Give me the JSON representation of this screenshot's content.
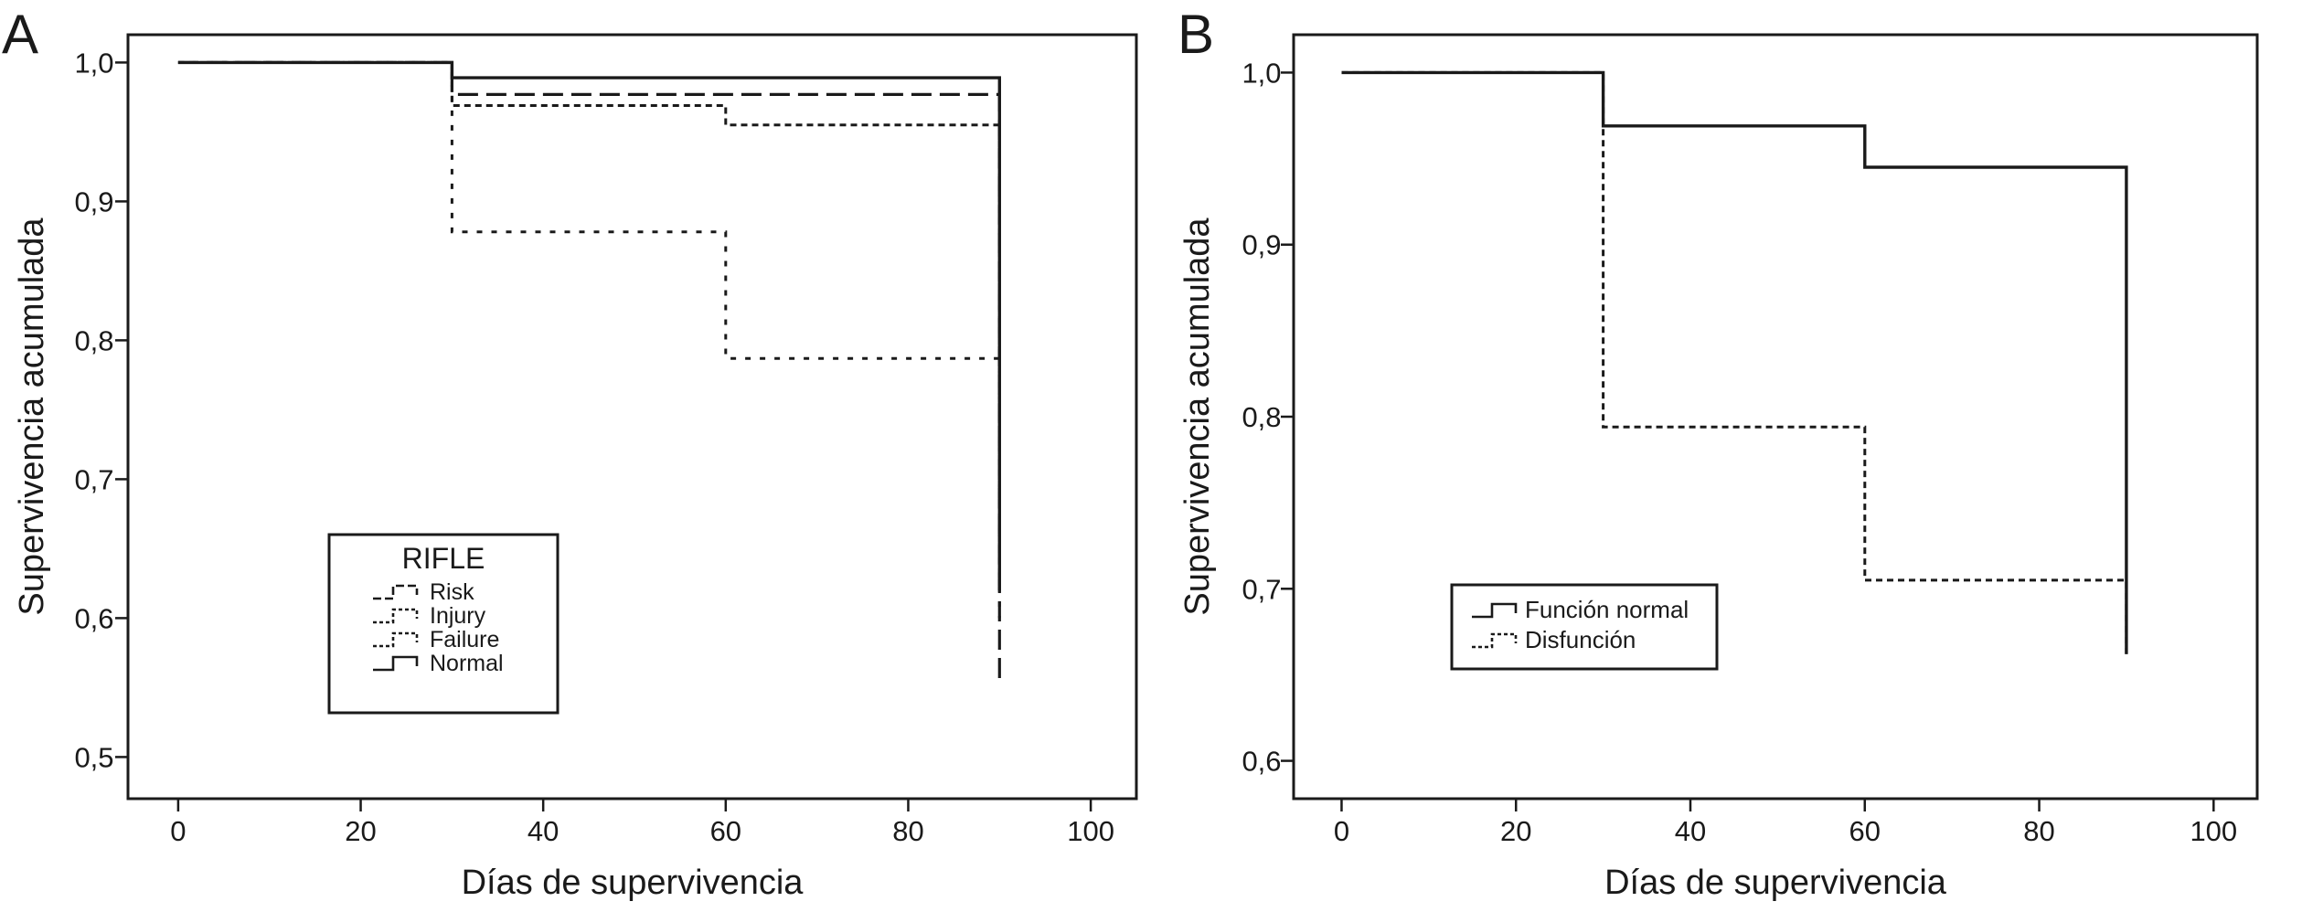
{
  "chart_data": [
    {
      "type": "line",
      "panel_label": "A",
      "xlabel": "Días de supervivencia",
      "ylabel": "Supervivencia acumulada",
      "xlim": [
        -5.5,
        105
      ],
      "ylim": [
        0.47,
        1.02
      ],
      "x_ticks": [
        0,
        20,
        40,
        60,
        80,
        100
      ],
      "y_ticks": [
        0.5,
        0.6,
        0.7,
        0.8,
        0.9,
        1.0
      ],
      "x_tick_labels": [
        "0",
        "20",
        "40",
        "60",
        "80",
        "100"
      ],
      "y_tick_labels": [
        "0,5",
        "0,6",
        "0,7",
        "0,8",
        "0,9",
        "1,0"
      ],
      "grid": false,
      "legend": {
        "title": "RIFLE",
        "placement": "lower-left"
      },
      "series": [
        {
          "name": "Risk",
          "style": "dashed",
          "step_x": [
            0,
            30,
            90,
            90
          ],
          "step_y": [
            1.0,
            0.977,
            0.977,
            0.555
          ]
        },
        {
          "name": "Injury",
          "style": "dotted",
          "step_x": [
            0,
            30,
            60,
            90,
            90
          ],
          "step_y": [
            1.0,
            0.969,
            0.955,
            0.955,
            0.62
          ]
        },
        {
          "name": "Failure",
          "style": "sparse-dotted",
          "step_x": [
            0,
            30,
            60,
            90,
            90
          ],
          "step_y": [
            1.0,
            0.878,
            0.787,
            0.787,
            0.6
          ]
        },
        {
          "name": "Normal",
          "style": "solid",
          "step_x": [
            0,
            30,
            90,
            90
          ],
          "step_y": [
            1.0,
            0.989,
            0.989,
            0.62
          ]
        }
      ]
    },
    {
      "type": "line",
      "panel_label": "B",
      "xlabel": "Días de supervivencia",
      "ylabel": "Supervivencia acumulada",
      "xlim": [
        -5.5,
        105
      ],
      "ylim": [
        0.578,
        1.022
      ],
      "x_ticks": [
        0,
        20,
        40,
        60,
        80,
        100
      ],
      "y_ticks": [
        0.6,
        0.7,
        0.8,
        0.9,
        1.0
      ],
      "x_tick_labels": [
        "0",
        "20",
        "40",
        "60",
        "80",
        "100"
      ],
      "y_tick_labels": [
        "0,6",
        "0,7",
        "0,8",
        "0,9",
        "1,0"
      ],
      "grid": false,
      "legend": {
        "title": "",
        "placement": "lower-left"
      },
      "series": [
        {
          "name": "Función normal",
          "style": "solid",
          "step_x": [
            0,
            30,
            60,
            90,
            90
          ],
          "step_y": [
            1.0,
            0.969,
            0.945,
            0.945,
            0.662
          ]
        },
        {
          "name": "Disfunción",
          "style": "dotted",
          "step_x": [
            0,
            30,
            60,
            90,
            90
          ],
          "step_y": [
            1.0,
            0.794,
            0.705,
            0.705,
            0.662
          ]
        }
      ]
    }
  ]
}
